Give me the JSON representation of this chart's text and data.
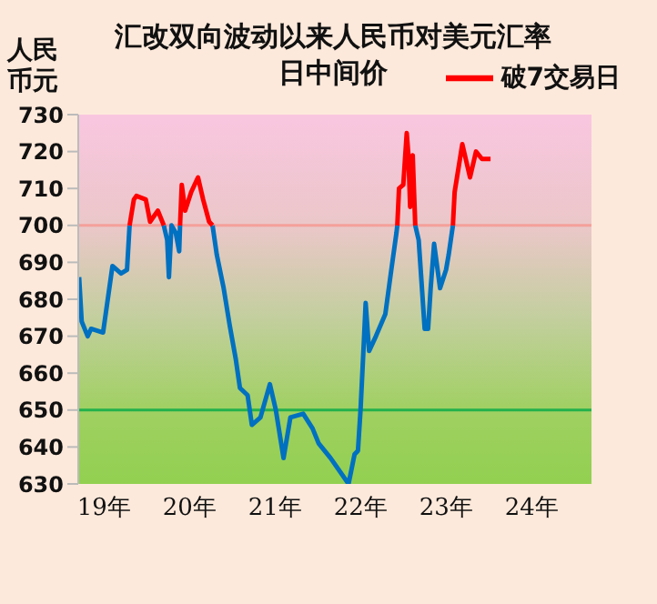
{
  "chart_data": {
    "type": "line",
    "title": "汇改双向波动以来人民币对美元汇率日中间价",
    "ylabel": "人民币元",
    "xlim": [
      18.7,
      24.7
    ],
    "xticks": [
      {
        "value": 19,
        "label": "19年"
      },
      {
        "value": 20,
        "label": "20年"
      },
      {
        "value": 21,
        "label": "21年"
      },
      {
        "value": 22,
        "label": "22年"
      },
      {
        "value": 23,
        "label": "23年"
      },
      {
        "value": 24,
        "label": "24年"
      }
    ],
    "ylim": [
      630,
      730
    ],
    "yticks": [
      630,
      640,
      650,
      660,
      670,
      680,
      690,
      700,
      710,
      720,
      730
    ],
    "series": [
      {
        "color": "#0070c0",
        "x": [
          18.71,
          18.74,
          18.81,
          18.85,
          18.99,
          19.1,
          19.2,
          19.27,
          19.3,
          19.5,
          19.7,
          19.74,
          19.76,
          19.79,
          19.84,
          19.88,
          19.89,
          20.1,
          20.27,
          20.32,
          20.4,
          20.47,
          20.54,
          20.59,
          20.68,
          20.73,
          20.83,
          20.94,
          21.01,
          21.1,
          21.18,
          21.33,
          21.44,
          21.51,
          21.65,
          21.86,
          21.93,
          21.97,
          22.0,
          22.04,
          22.06,
          22.1,
          22.18,
          22.29,
          22.36,
          22.42,
          22.43,
          22.55,
          22.64,
          22.68,
          22.75,
          22.79,
          22.82,
          22.86,
          22.93,
          23.0,
          23.03,
          23.08
        ],
        "values": [
          686,
          674,
          670,
          672,
          671,
          689,
          687,
          688,
          700,
          null,
          700,
          696,
          686,
          700,
          698,
          693,
          700,
          null,
          700,
          692,
          683,
          673,
          664,
          656,
          654,
          646,
          648,
          657,
          650,
          637,
          648,
          649,
          645,
          641,
          637,
          630,
          638,
          639,
          650,
          669,
          679,
          666,
          670,
          676,
          688,
          698,
          700,
          null,
          700,
          696,
          672,
          672,
          683,
          695,
          683,
          688,
          692,
          700
        ]
      },
      {
        "name": "破7交易日",
        "color": "#ff0000",
        "x": [
          19.3,
          19.35,
          19.38,
          19.49,
          19.54,
          19.63,
          19.7,
          19.8,
          19.89,
          19.91,
          19.95,
          20.02,
          20.1,
          20.16,
          20.23,
          20.27,
          22.3,
          22.43,
          22.45,
          22.5,
          22.54,
          22.56,
          22.58,
          22.61,
          22.64,
          22.9,
          23.08,
          23.1,
          23.19,
          23.28,
          23.35,
          23.42,
          23.52
        ],
        "values": [
          700,
          707,
          708,
          707,
          701,
          704,
          700,
          null,
          700,
          711,
          704,
          709,
          713,
          707,
          701,
          700,
          null,
          700,
          710,
          711,
          725,
          719,
          705,
          719,
          700,
          null,
          700,
          709,
          722,
          713,
          720,
          718,
          718
        ]
      }
    ],
    "ref_lines": [
      {
        "axis": "y",
        "value": 700,
        "color": "#f4a09a"
      },
      {
        "axis": "y",
        "value": 650,
        "color": "#22b14c"
      }
    ],
    "legend": "top right",
    "line_style": "solid",
    "marker": "none"
  }
}
